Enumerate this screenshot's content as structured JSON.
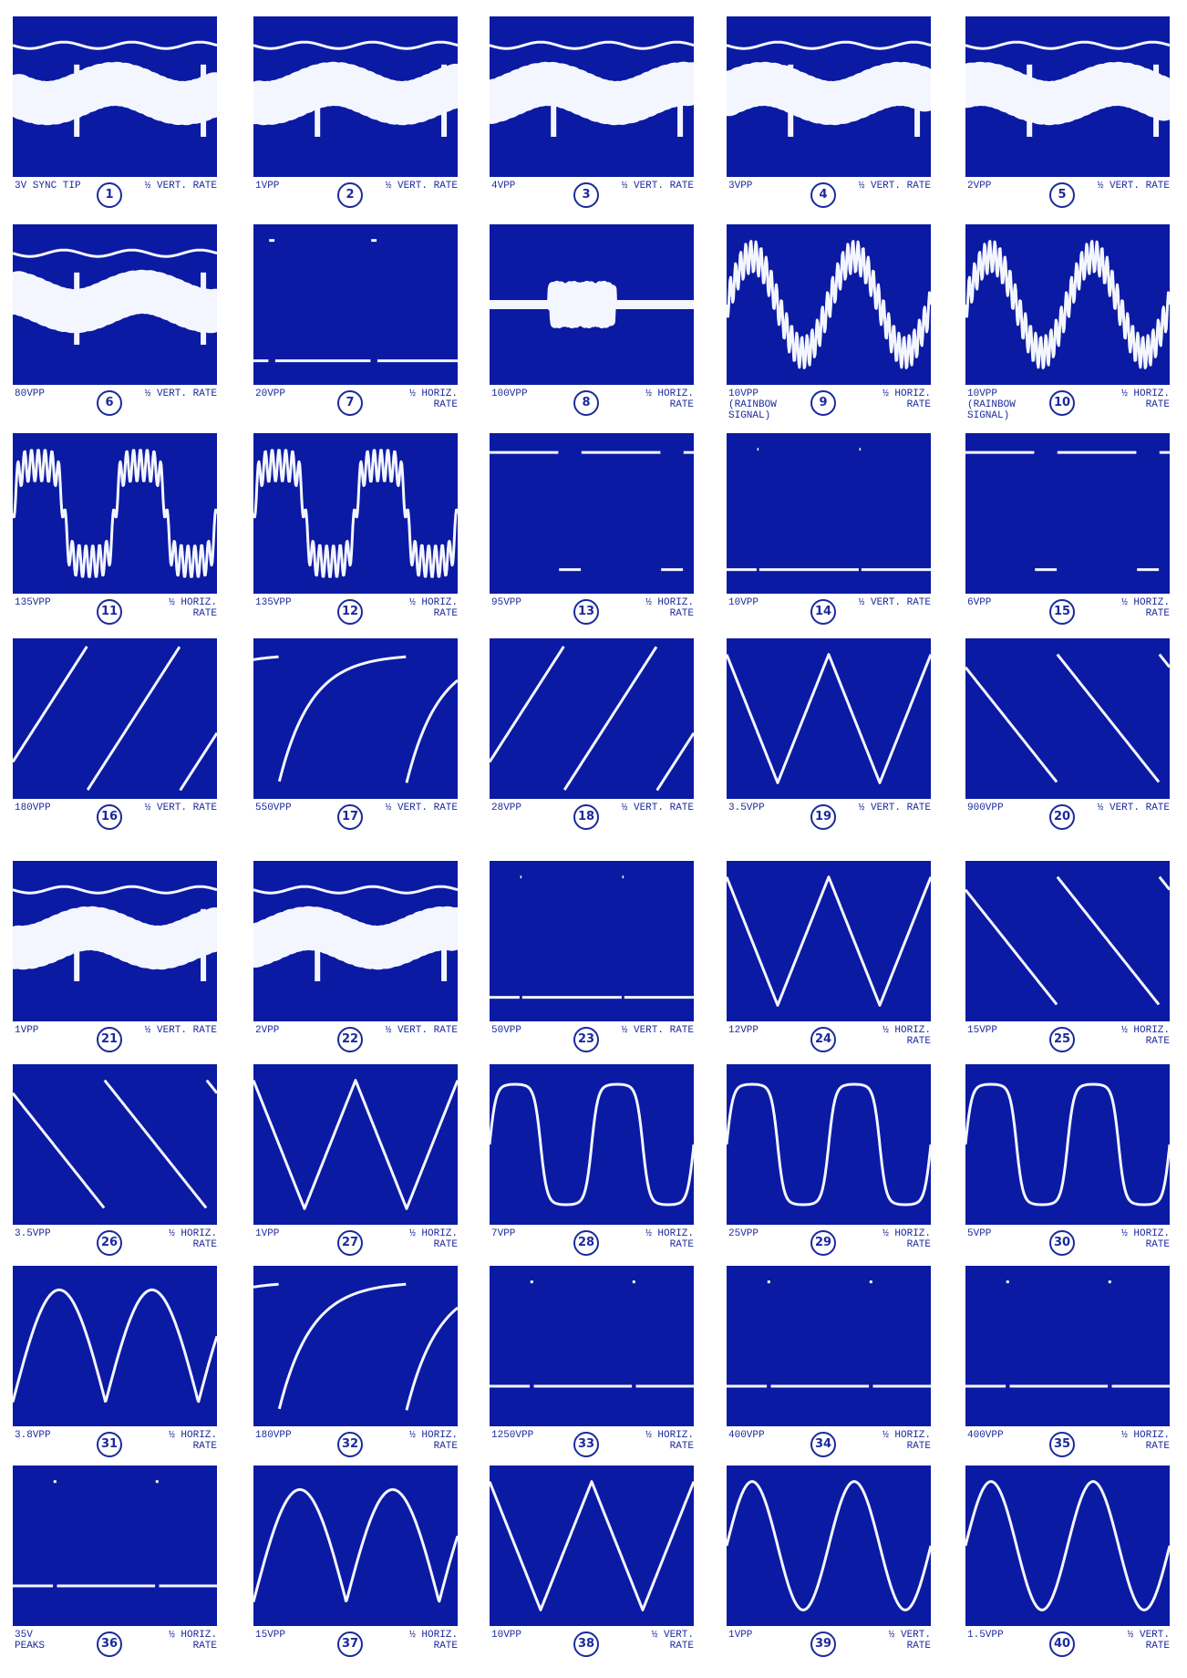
{
  "panels": [
    {
      "label": [
        "3V SYNC TIP"
      ],
      "number": "1",
      "rate": [
        "½ VERT. RATE"
      ]
    },
    {
      "label": [
        "1VPP"
      ],
      "number": "2",
      "rate": [
        "½ VERT. RATE"
      ]
    },
    {
      "label": [
        "4VPP"
      ],
      "number": "3",
      "rate": [
        "½ VERT. RATE"
      ]
    },
    {
      "label": [
        "3VPP"
      ],
      "number": "4",
      "rate": [
        "½ VERT. RATE"
      ]
    },
    {
      "label": [
        "2VPP"
      ],
      "number": "5",
      "rate": [
        "½ VERT. RATE"
      ]
    },
    {
      "label": [
        "80VPP"
      ],
      "number": "6",
      "rate": [
        "½ VERT. RATE"
      ]
    },
    {
      "label": [
        "20VPP"
      ],
      "number": "7",
      "rate": [
        "½ HORIZ.",
        "RATE"
      ]
    },
    {
      "label": [
        "100VPP"
      ],
      "number": "8",
      "rate": [
        "½ HORIZ.",
        "RATE"
      ]
    },
    {
      "label": [
        "10VPP",
        "(RAINBOW",
        "SIGNAL)"
      ],
      "number": "9",
      "rate": [
        "½ HORIZ.",
        "RATE"
      ]
    },
    {
      "label": [
        "10VPP",
        "(RAINBOW",
        "SIGNAL)"
      ],
      "number": "10",
      "rate": [
        "½ HORIZ.",
        "RATE"
      ]
    },
    {
      "label": [
        "135VPP"
      ],
      "number": "11",
      "rate": [
        "½ HORIZ.",
        "RATE"
      ]
    },
    {
      "label": [
        "135VPP"
      ],
      "number": "12",
      "rate": [
        "½ HORIZ.",
        "RATE"
      ]
    },
    {
      "label": [
        "95VPP"
      ],
      "number": "13",
      "rate": [
        "½ HORIZ.",
        "RATE"
      ]
    },
    {
      "label": [
        "10VPP"
      ],
      "number": "14",
      "rate": [
        "½ VERT. RATE"
      ]
    },
    {
      "label": [
        "6VPP"
      ],
      "number": "15",
      "rate": [
        "½ HORIZ.",
        "RATE"
      ]
    },
    {
      "label": [
        "180VPP"
      ],
      "number": "16",
      "rate": [
        "½ VERT. RATE"
      ]
    },
    {
      "label": [
        "550VPP"
      ],
      "number": "17",
      "rate": [
        "½ VERT. RATE"
      ]
    },
    {
      "label": [
        "28VPP"
      ],
      "number": "18",
      "rate": [
        "½ VERT. RATE"
      ]
    },
    {
      "label": [
        "3.5VPP"
      ],
      "number": "19",
      "rate": [
        "½ VERT. RATE"
      ]
    },
    {
      "label": [
        "900VPP"
      ],
      "number": "20",
      "rate": [
        "½ VERT. RATE"
      ]
    },
    {
      "label": [
        "1VPP"
      ],
      "number": "21",
      "rate": [
        "½ VERT. RATE"
      ]
    },
    {
      "label": [
        "2VPP"
      ],
      "number": "22",
      "rate": [
        "½ VERT. RATE"
      ]
    },
    {
      "label": [
        "50VPP"
      ],
      "number": "23",
      "rate": [
        "½ VERT. RATE"
      ]
    },
    {
      "label": [
        "12VPP"
      ],
      "number": "24",
      "rate": [
        "½ HORIZ.",
        "RATE"
      ]
    },
    {
      "label": [
        "15VPP"
      ],
      "number": "25",
      "rate": [
        "½ HORIZ.",
        "RATE"
      ]
    },
    {
      "label": [
        "3.5VPP"
      ],
      "number": "26",
      "rate": [
        "½ HORIZ.",
        "RATE"
      ]
    },
    {
      "label": [
        "1VPP"
      ],
      "number": "27",
      "rate": [
        "½ HORIZ.",
        "RATE"
      ]
    },
    {
      "label": [
        "7VPP"
      ],
      "number": "28",
      "rate": [
        "½ HORIZ.",
        "RATE"
      ]
    },
    {
      "label": [
        "25VPP"
      ],
      "number": "29",
      "rate": [
        "½ HORIZ.",
        "RATE"
      ]
    },
    {
      "label": [
        "5VPP"
      ],
      "number": "30",
      "rate": [
        "½ HORIZ.",
        "RATE"
      ]
    },
    {
      "label": [
        "3.8VPP"
      ],
      "number": "31",
      "rate": [
        "½ HORIZ.",
        "RATE"
      ]
    },
    {
      "label": [
        "180VPP"
      ],
      "number": "32",
      "rate": [
        "½ HORIZ.",
        "RATE"
      ]
    },
    {
      "label": [
        "1250VPP"
      ],
      "number": "33",
      "rate": [
        "½ HORIZ.",
        "RATE"
      ]
    },
    {
      "label": [
        "400VPP"
      ],
      "number": "34",
      "rate": [
        "½ HORIZ.",
        "RATE"
      ]
    },
    {
      "label": [
        "400VPP"
      ],
      "number": "35",
      "rate": [
        "½ HORIZ.",
        "RATE"
      ]
    },
    {
      "label": [
        "35V",
        "PEAKS"
      ],
      "number": "36",
      "rate": [
        "½ HORIZ.",
        "RATE"
      ]
    },
    {
      "label": [
        "15VPP"
      ],
      "number": "37",
      "rate": [
        "½ HORIZ.",
        "RATE"
      ]
    },
    {
      "label": [
        "10VPP"
      ],
      "number": "38",
      "rate": [
        "½ VERT.",
        "RATE"
      ]
    },
    {
      "label": [
        "1VPP"
      ],
      "number": "39",
      "rate": [
        "½ VERT.",
        "RATE"
      ]
    },
    {
      "label": [
        "1.5VPP"
      ],
      "number": "40",
      "rate": [
        "½ VERT.",
        "RATE"
      ]
    }
  ]
}
